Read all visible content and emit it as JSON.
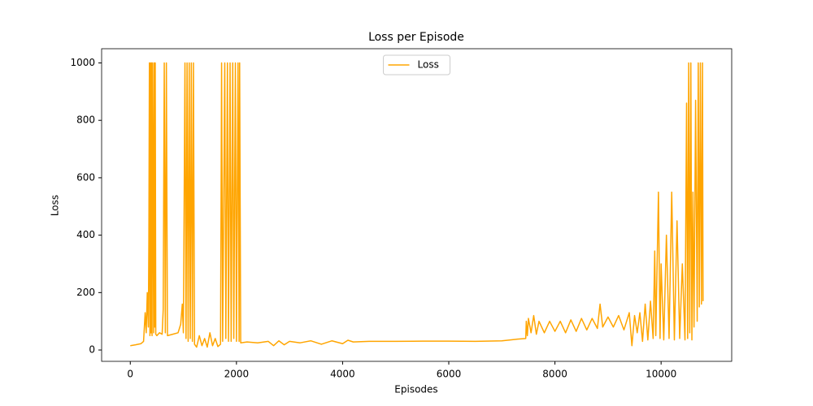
{
  "chart_data": {
    "type": "line",
    "title": "Loss per Episode",
    "xlabel": "Episodes",
    "ylabel": "Loss",
    "xlim": [
      -540,
      11330
    ],
    "ylim": [
      -39.5,
      1049.5
    ],
    "xticks": [
      0,
      2000,
      4000,
      6000,
      8000,
      10000
    ],
    "yticks": [
      0,
      200,
      400,
      600,
      800,
      1000
    ],
    "legend": "upper center",
    "x": [
      0,
      100,
      200,
      250,
      280,
      300,
      320,
      340,
      350,
      360,
      370,
      380,
      390,
      400,
      410,
      420,
      440,
      450,
      460,
      470,
      480,
      500,
      550,
      600,
      620,
      640,
      660,
      680,
      700,
      800,
      900,
      950,
      980,
      1000,
      1030,
      1050,
      1070,
      1090,
      1110,
      1130,
      1150,
      1170,
      1190,
      1210,
      1250,
      1300,
      1350,
      1400,
      1450,
      1500,
      1550,
      1600,
      1650,
      1700,
      1720,
      1740,
      1780,
      1800,
      1830,
      1850,
      1880,
      1900,
      1930,
      1950,
      1980,
      2000,
      2030,
      2050,
      2060,
      2080,
      2200,
      2400,
      2600,
      2700,
      2800,
      2900,
      3000,
      3200,
      3400,
      3600,
      3800,
      4000,
      4100,
      4200,
      4500,
      5000,
      5500,
      6000,
      6500,
      7000,
      7300,
      7450,
      7460,
      7480,
      7500,
      7550,
      7600,
      7650,
      7700,
      7800,
      7900,
      8000,
      8100,
      8200,
      8300,
      8400,
      8500,
      8600,
      8700,
      8800,
      8850,
      8900,
      9000,
      9100,
      9200,
      9300,
      9400,
      9450,
      9500,
      9550,
      9600,
      9650,
      9700,
      9750,
      9800,
      9850,
      9880,
      9900,
      9950,
      9980,
      10000,
      10050,
      10100,
      10150,
      10200,
      10250,
      10300,
      10350,
      10400,
      10450,
      10480,
      10500,
      10520,
      10540,
      10560,
      10580,
      10600,
      10620,
      10650,
      10680,
      10700,
      10720,
      10740,
      10760,
      10780,
      10790
    ],
    "series": [
      {
        "name": "Loss",
        "color": "#ffa500",
        "values": [
          15,
          18,
          22,
          30,
          130,
          60,
          200,
          80,
          380,
          1000,
          50,
          1000,
          60,
          1000,
          50,
          1000,
          60,
          1000,
          80,
          1000,
          55,
          50,
          60,
          55,
          140,
          1000,
          60,
          1000,
          50,
          55,
          60,
          90,
          160,
          60,
          1000,
          40,
          1000,
          30,
          1000,
          40,
          1000,
          30,
          1000,
          20,
          10,
          50,
          15,
          40,
          10,
          60,
          15,
          40,
          12,
          20,
          1000,
          30,
          1000,
          40,
          1000,
          30,
          1000,
          30,
          1000,
          40,
          1000,
          30,
          1000,
          30,
          1000,
          25,
          28,
          25,
          30,
          15,
          32,
          18,
          30,
          25,
          32,
          20,
          32,
          22,
          34,
          28,
          30,
          30,
          31,
          31,
          30,
          32,
          38,
          40,
          100,
          50,
          110,
          60,
          120,
          55,
          100,
          60,
          100,
          65,
          100,
          60,
          105,
          65,
          110,
          70,
          110,
          75,
          160,
          80,
          115,
          80,
          120,
          70,
          130,
          15,
          120,
          60,
          130,
          30,
          160,
          35,
          170,
          40,
          345,
          50,
          550,
          40,
          300,
          35,
          400,
          40,
          550,
          35,
          450,
          40,
          300,
          35,
          860,
          40,
          1000,
          60,
          1000,
          35,
          550,
          80,
          870,
          100,
          1000,
          150,
          1000,
          160,
          1000,
          170
        ]
      }
    ]
  }
}
